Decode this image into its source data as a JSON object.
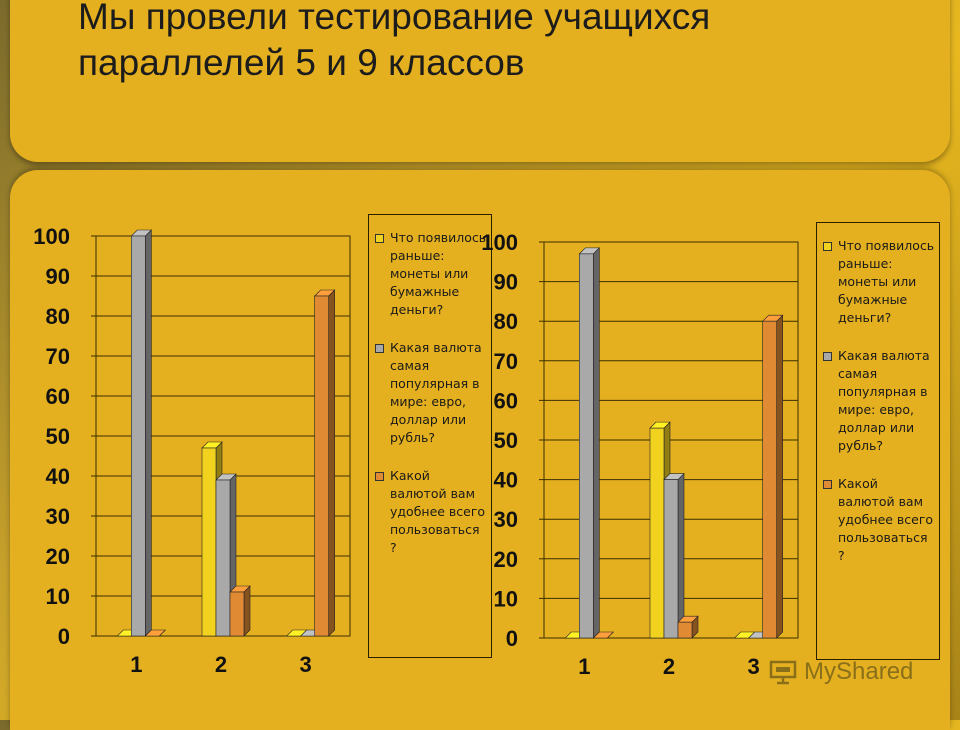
{
  "title": "Мы провели тестирование учащихся параллелей 5 и 9 классов",
  "watermark": "MyShared",
  "colors": {
    "gray": "#a9a9a9",
    "yellow": "#f1d21e",
    "orange": "#e08a33"
  },
  "legend": [
    {
      "label": "Что появилось раньше: монеты или бумажные деньги?",
      "color": "#f1d21e"
    },
    {
      "label": "Какая валюта самая популярная в мире: евро, доллар или рубль?",
      "color": "#a9a9a9"
    },
    {
      "label": "Какой валютой вам удобнее всего пользоваться ?",
      "color": "#e08a33"
    }
  ],
  "chart_data": [
    {
      "type": "bar",
      "categories": [
        "1",
        "2",
        "3"
      ],
      "ylim": [
        0,
        100
      ],
      "yticks": [
        "0",
        "10",
        "20",
        "30",
        "40",
        "50",
        "60",
        "70",
        "80",
        "90",
        "100"
      ],
      "grid": true,
      "legend_position": "right",
      "series": [
        {
          "name": "Что появилось раньше: монеты или бумажные деньги?",
          "color": "#f1d21e",
          "values": [
            0,
            47,
            0
          ]
        },
        {
          "name": "Какая валюта самая популярная в мире: евро, доллар или рубль?",
          "color": "#a9a9a9",
          "values": [
            100,
            39,
            0
          ]
        },
        {
          "name": "Какой валютой вам удобнее всего пользоваться ?",
          "color": "#e08a33",
          "values": [
            0,
            11,
            85
          ]
        }
      ]
    },
    {
      "type": "bar",
      "categories": [
        "1",
        "2",
        "3"
      ],
      "ylim": [
        0,
        100
      ],
      "yticks": [
        "0",
        "10",
        "20",
        "30",
        "40",
        "50",
        "60",
        "70",
        "80",
        "90",
        "100"
      ],
      "grid": true,
      "legend_position": "right",
      "series": [
        {
          "name": "Что появилось раньше: монеты или бумажные деньги?",
          "color": "#f1d21e",
          "values": [
            0,
            53,
            0
          ]
        },
        {
          "name": "Какая валюта самая популярная в мире: евро, доллар или рубль?",
          "color": "#a9a9a9",
          "values": [
            97,
            40,
            0
          ]
        },
        {
          "name": "Какой валютой вам удобнее всего пользоваться ?",
          "color": "#e08a33",
          "values": [
            0,
            4,
            80
          ]
        }
      ]
    }
  ]
}
